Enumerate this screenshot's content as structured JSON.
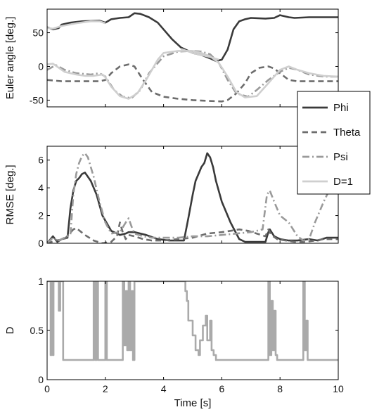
{
  "chart_data": [
    {
      "type": "line",
      "ylabel": "Euler angle [deg.]",
      "xlim": [
        0,
        10
      ],
      "ylim": [
        -60,
        85
      ],
      "yticks": [
        50,
        0,
        -50
      ],
      "series": [
        {
          "name": "Phi",
          "color": "#3a3a3a",
          "dash": "solid",
          "x": [
            0.0,
            0.2,
            0.4,
            0.5,
            0.8,
            1.2,
            1.8,
            2.0,
            2.2,
            2.5,
            2.8,
            3.0,
            3.2,
            3.5,
            3.8,
            4.0,
            4.3,
            4.6,
            5.0,
            5.3,
            5.6,
            5.8,
            6.0,
            6.2,
            6.4,
            6.6,
            6.8,
            7.0,
            7.5,
            7.8,
            8.0,
            8.3,
            8.5,
            9.0,
            9.5,
            10.0
          ],
          "y": [
            58,
            55,
            57,
            62,
            65,
            67,
            68,
            65,
            70,
            72,
            73,
            79,
            78,
            73,
            65,
            55,
            40,
            28,
            20,
            17,
            12,
            8,
            10,
            25,
            55,
            67,
            70,
            72,
            71,
            72,
            76,
            73,
            72,
            73,
            73,
            73
          ]
        },
        {
          "name": "Theta",
          "color": "#6d6d6d",
          "dash": "8,5",
          "x": [
            0.0,
            0.5,
            1.0,
            1.5,
            1.8,
            2.0,
            2.2,
            2.5,
            2.8,
            3.0,
            3.3,
            3.6,
            4.0,
            4.5,
            5.0,
            5.5,
            6.0,
            6.2,
            6.5,
            6.8,
            7.0,
            7.3,
            7.6,
            7.8,
            8.0,
            8.3,
            8.6,
            9.0,
            9.5,
            10.0
          ],
          "y": [
            -20,
            -22,
            -22,
            -22,
            -22,
            -20,
            -10,
            0,
            3,
            0,
            -20,
            -38,
            -45,
            -48,
            -50,
            -51,
            -52,
            -50,
            -40,
            -25,
            -10,
            -2,
            0,
            -3,
            -10,
            -20,
            -22,
            -22,
            -22,
            -22
          ]
        },
        {
          "name": "Psi",
          "color": "#9a9a9a",
          "dash": "10,4,2,4",
          "x": [
            0.0,
            0.3,
            0.6,
            1.0,
            1.5,
            1.8,
            2.0,
            2.3,
            2.6,
            2.9,
            3.2,
            3.5,
            4.0,
            4.5,
            5.0,
            5.3,
            5.6,
            5.9,
            6.2,
            6.5,
            6.9,
            7.2,
            7.6,
            8.0,
            8.3,
            8.6,
            9.0,
            9.5,
            10.0
          ],
          "y": [
            -5,
            2,
            -5,
            -10,
            -12,
            -10,
            -15,
            -35,
            -45,
            -47,
            -35,
            -10,
            15,
            22,
            23,
            22,
            18,
            5,
            -20,
            -40,
            -45,
            -35,
            -20,
            -8,
            -2,
            -5,
            -12,
            -15,
            -15
          ]
        },
        {
          "name": "D=1",
          "color": "#cfcfcf",
          "dash": "solid",
          "x": [
            0.0,
            0.2,
            0.4,
            0.6,
            1.0,
            1.3,
            1.6,
            1.9,
            2.0,
            2.2,
            2.5,
            2.8,
            3.1,
            3.4,
            3.8,
            4.0,
            4.5,
            5.0,
            5.3,
            5.6,
            5.9,
            6.2,
            6.5,
            6.8,
            7.2,
            7.6,
            8.0,
            8.3,
            8.6,
            9.0,
            9.5,
            10.0
          ],
          "y": [
            3,
            4,
            -2,
            -8,
            -12,
            -14,
            -14,
            -12,
            -16,
            -30,
            -44,
            -48,
            -40,
            -20,
            10,
            20,
            23,
            23,
            20,
            15,
            5,
            -15,
            -38,
            -46,
            -44,
            -25,
            -5,
            0,
            -5,
            -10,
            -14,
            -15
          ]
        },
        {
          "name": "D=1",
          "color": "#cfcfcf",
          "dash": "solid",
          "x": [
            0.0,
            0.2,
            0.5,
            1.0,
            1.5,
            1.8,
            2.0
          ],
          "y": [
            57,
            56,
            60,
            64,
            67,
            67,
            64
          ]
        },
        {
          "name": "D=1",
          "color": "#cfcfcf",
          "dash": "solid",
          "x": [
            4.6,
            5.0,
            5.3,
            5.6,
            5.9
          ],
          "y": [
            26,
            20,
            17,
            14,
            10
          ]
        }
      ]
    },
    {
      "type": "line",
      "ylabel": "RMSE [deg.]",
      "xlim": [
        0,
        10
      ],
      "ylim": [
        0,
        7
      ],
      "yticks": [
        6,
        4,
        2,
        0
      ],
      "series": [
        {
          "name": "Phi",
          "color": "#3a3a3a",
          "dash": "solid",
          "x": [
            0.0,
            0.2,
            0.35,
            0.5,
            0.7,
            0.8,
            0.9,
            1.0,
            1.1,
            1.2,
            1.3,
            1.4,
            1.5,
            1.7,
            1.9,
            2.2,
            2.5,
            2.7,
            2.8,
            3.0,
            3.4,
            3.8,
            4.2,
            4.7,
            4.85,
            5.0,
            5.1,
            5.2,
            5.3,
            5.4,
            5.5,
            5.6,
            5.7,
            5.8,
            6.0,
            6.3,
            6.6,
            6.8,
            7.2,
            7.5,
            7.6,
            7.65,
            7.8,
            8.0,
            8.3,
            8.6,
            9.0,
            9.3,
            9.6,
            10.0
          ],
          "y": [
            0.0,
            0.5,
            0.1,
            0.3,
            0.4,
            2.5,
            3.8,
            4.5,
            4.7,
            5.0,
            5.1,
            4.8,
            4.5,
            3.5,
            2.0,
            0.9,
            0.6,
            0.7,
            0.8,
            0.8,
            0.6,
            0.3,
            0.2,
            0.2,
            1.8,
            3.5,
            4.5,
            5.0,
            5.5,
            5.8,
            6.5,
            6.2,
            5.5,
            4.5,
            3.0,
            1.5,
            0.3,
            0.1,
            0.1,
            0.1,
            0.8,
            1.0,
            0.5,
            0.3,
            0.2,
            0.2,
            0.3,
            0.2,
            0.4,
            0.4
          ]
        },
        {
          "name": "Theta",
          "color": "#6d6d6d",
          "dash": "8,5",
          "x": [
            0.0,
            0.3,
            0.6,
            0.9,
            1.0,
            1.3,
            1.6,
            1.9,
            2.2,
            2.4,
            2.5,
            2.6,
            2.7,
            2.8,
            3.0,
            3.3,
            3.6,
            4.0,
            4.5,
            5.0,
            5.5,
            6.0,
            6.3,
            6.6,
            6.9,
            7.2,
            7.5,
            7.6,
            7.7,
            7.9,
            8.2,
            8.5,
            8.9,
            9.2,
            9.5,
            10.0
          ],
          "y": [
            0.0,
            0.2,
            0.3,
            1.0,
            1.1,
            0.6,
            0.2,
            0.0,
            0.1,
            0.5,
            1.5,
            0.8,
            0.3,
            0.6,
            0.5,
            0.3,
            0.2,
            0.2,
            0.3,
            0.4,
            0.7,
            0.8,
            0.9,
            1.0,
            0.9,
            0.7,
            0.5,
            1.0,
            0.6,
            0.3,
            0.2,
            0.1,
            0.1,
            0.2,
            0.3,
            0.3
          ]
        },
        {
          "name": "Psi",
          "color": "#9a9a9a",
          "dash": "10,4,2,4",
          "x": [
            0.0,
            0.2,
            0.4,
            0.6,
            0.8,
            0.9,
            1.0,
            1.1,
            1.2,
            1.3,
            1.4,
            1.5,
            1.6,
            1.8,
            2.0,
            2.2,
            2.5,
            2.7,
            2.8,
            2.9,
            3.0,
            3.3,
            3.6,
            4.0,
            4.5,
            5.0,
            5.5,
            6.0,
            6.5,
            7.0,
            7.4,
            7.55,
            7.65,
            7.8,
            8.0,
            8.3,
            8.6,
            8.8,
            9.0,
            9.2,
            9.5,
            9.8,
            10.0
          ],
          "y": [
            0.0,
            0.4,
            0.2,
            0.4,
            0.6,
            3.5,
            5.0,
            5.8,
            6.3,
            6.5,
            6.2,
            5.5,
            4.8,
            3.0,
            1.5,
            0.7,
            0.8,
            1.5,
            1.8,
            1.2,
            0.7,
            0.5,
            0.4,
            0.4,
            0.4,
            0.5,
            0.5,
            0.6,
            0.7,
            0.8,
            1.0,
            3.5,
            3.8,
            3.0,
            2.0,
            1.5,
            0.5,
            0.2,
            0.3,
            1.5,
            3.0,
            4.3,
            4.7
          ]
        }
      ]
    },
    {
      "type": "line",
      "ylabel": "D",
      "xlabel": "Time [s]",
      "xlim": [
        0,
        10
      ],
      "ylim": [
        0,
        1
      ],
      "yticks": [
        1,
        0.5,
        0
      ],
      "xticks": [
        0,
        2,
        4,
        6,
        8,
        10
      ],
      "series": [
        {
          "name": "D",
          "color": "#aaaaaa",
          "dash": "solid",
          "x": [
            0.0,
            0.12,
            0.12,
            0.15,
            0.15,
            0.2,
            0.2,
            0.22,
            0.22,
            0.4,
            0.4,
            0.45,
            0.45,
            0.55,
            0.55,
            1.6,
            1.6,
            1.65,
            1.65,
            1.7,
            1.7,
            1.75,
            1.75,
            2.0,
            2.0,
            2.05,
            2.05,
            2.6,
            2.6,
            2.65,
            2.65,
            2.7,
            2.7,
            2.75,
            2.75,
            2.8,
            2.8,
            2.85,
            2.85,
            2.9,
            2.9,
            2.95,
            2.95,
            3.0,
            3.0,
            4.75,
            4.75,
            4.8,
            4.8,
            4.85,
            4.85,
            5.0,
            5.0,
            5.1,
            5.1,
            5.2,
            5.2,
            5.25,
            5.25,
            5.35,
            5.35,
            5.45,
            5.45,
            5.5,
            5.5,
            5.6,
            5.6,
            5.65,
            5.65,
            5.72,
            5.72,
            5.8,
            5.8,
            7.6,
            7.6,
            7.65,
            7.65,
            7.7,
            7.7,
            7.75,
            7.75,
            7.8,
            7.8,
            7.85,
            7.85,
            7.9,
            7.9,
            8.8,
            8.8,
            8.85,
            8.85,
            8.9,
            8.9,
            8.95,
            8.95,
            10.0
          ],
          "y": [
            1.0,
            1.0,
            0.25,
            0.25,
            1.0,
            1.0,
            0.25,
            0.25,
            1.0,
            1.0,
            0.7,
            0.7,
            1.0,
            1.0,
            0.2,
            0.2,
            1.0,
            1.0,
            0.2,
            0.2,
            1.0,
            1.0,
            0.2,
            0.2,
            1.0,
            1.0,
            0.2,
            0.2,
            1.0,
            1.0,
            0.35,
            0.35,
            0.9,
            0.9,
            0.3,
            0.3,
            1.0,
            1.0,
            0.3,
            0.3,
            0.9,
            0.9,
            0.2,
            0.2,
            1.0,
            1.0,
            0.9,
            0.9,
            0.8,
            0.8,
            0.6,
            0.6,
            0.45,
            0.45,
            0.3,
            0.3,
            0.25,
            0.25,
            0.4,
            0.4,
            0.55,
            0.55,
            0.65,
            0.65,
            0.4,
            0.4,
            0.6,
            0.6,
            0.3,
            0.3,
            0.25,
            0.25,
            0.2,
            0.2,
            1.0,
            1.0,
            0.25,
            0.25,
            0.8,
            0.8,
            0.3,
            0.3,
            0.7,
            0.7,
            0.25,
            0.25,
            0.2,
            0.2,
            1.0,
            1.0,
            0.3,
            0.3,
            0.6,
            0.6,
            0.2,
            0.2
          ]
        }
      ]
    }
  ],
  "legend": {
    "placement": "right",
    "items": [
      {
        "label": "Phi",
        "color": "#3a3a3a",
        "dash": "solid"
      },
      {
        "label": "Theta",
        "color": "#6d6d6d",
        "dash": "8,5"
      },
      {
        "label": "Psi",
        "color": "#9a9a9a",
        "dash": "10,4,2,4"
      },
      {
        "label": "D=1",
        "color": "#cfcfcf",
        "dash": "solid"
      }
    ]
  }
}
